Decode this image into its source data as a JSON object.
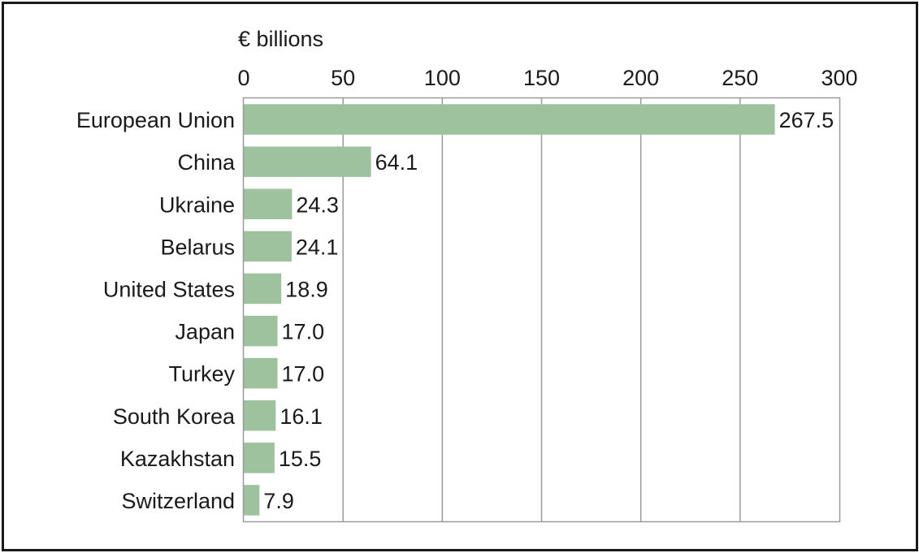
{
  "chart_data": {
    "type": "bar",
    "orientation": "horizontal",
    "unit_label": "€ billions",
    "categories": [
      "European Union",
      "China",
      "Ukraine",
      "Belarus",
      "United States",
      "Japan",
      "Turkey",
      "South Korea",
      "Kazakhstan",
      "Switzerland"
    ],
    "values": [
      267.5,
      64.1,
      24.3,
      24.1,
      18.9,
      17.0,
      17.0,
      16.1,
      15.5,
      7.9
    ],
    "data_labels": [
      "267.5",
      "64.1",
      "24.3",
      "24.1",
      "18.9",
      "17.0",
      "17.0",
      "16.1",
      "15.5",
      "7.9"
    ],
    "xlim": [
      0,
      300
    ],
    "xticks": [
      0,
      50,
      100,
      150,
      200,
      250,
      300
    ],
    "xtick_labels": [
      "0",
      "50",
      "100",
      "150",
      "200",
      "250",
      "300"
    ],
    "grid": "vertical",
    "axis_position": "top",
    "legend": "none",
    "colors": {
      "bar": "#9dc29d",
      "grid": "#9a9a9a",
      "text": "#1a1a1a",
      "frame": "#1a1a1a"
    }
  }
}
